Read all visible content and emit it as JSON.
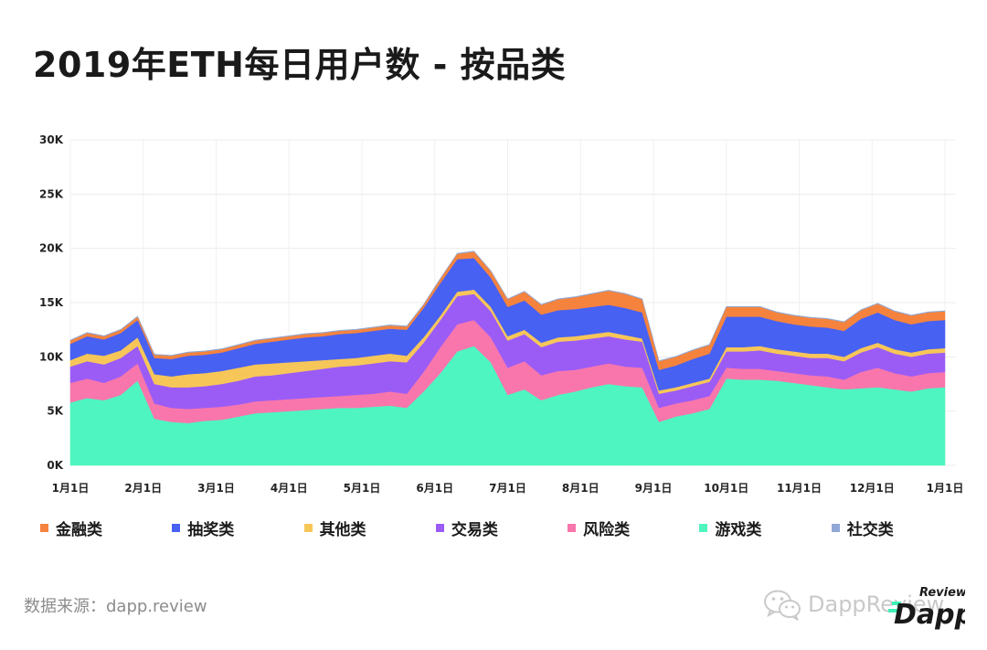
{
  "title": "2019年ETH每日用户数 - 按品类",
  "source": "数据来源：dapp.review",
  "watermark": {
    "text": "DappReview",
    "icon": "wechat-icon"
  },
  "logo": {
    "small": "Review",
    "big": "Dapp"
  },
  "chart_data": {
    "type": "area",
    "stacked": true,
    "ylim": [
      0,
      30000
    ],
    "yticks": [
      0,
      5000,
      10000,
      15000,
      20000,
      25000,
      30000
    ],
    "ytick_labels": [
      "0K",
      "5K",
      "10K",
      "15K",
      "20K",
      "25K",
      "30K"
    ],
    "xtick_labels": [
      "1月1日",
      "2月1日",
      "3月1日",
      "4月1日",
      "5月1日",
      "6月1日",
      "7月1日",
      "8月1日",
      "9月1日",
      "10月1日",
      "11月1日",
      "12月1日",
      "1月1日"
    ],
    "grid": true,
    "legend_position": "bottom",
    "x": [
      "1月1日",
      "1月8日",
      "1月15日",
      "1月22日",
      "1月29日",
      "2月5日",
      "2月12日",
      "2月19日",
      "2月26日",
      "3月5日",
      "3月12日",
      "3月19日",
      "3月26日",
      "4月2日",
      "4月9日",
      "4月16日",
      "4月23日",
      "4月30日",
      "5月7日",
      "5月14日",
      "5月21日",
      "5月28日",
      "6月4日",
      "6月11日",
      "6月18日",
      "6月25日",
      "7月2日",
      "7月9日",
      "7月16日",
      "7月23日",
      "7月30日",
      "8月6日",
      "8月13日",
      "8月20日",
      "8月27日",
      "9月3日",
      "9月10日",
      "9月17日",
      "9月24日",
      "10月1日",
      "10月8日",
      "10月15日",
      "10月22日",
      "10月29日",
      "11月5日",
      "11月12日",
      "11月19日",
      "11月26日",
      "12月3日",
      "12月10日",
      "12月17日",
      "12月24日",
      "12月31日"
    ],
    "series": [
      {
        "name": "游戏类",
        "color": "#4ef5c0",
        "values": [
          5800,
          6200,
          6000,
          6500,
          7800,
          4300,
          4000,
          3900,
          4100,
          4200,
          4500,
          4800,
          4900,
          5000,
          5100,
          5200,
          5300,
          5300,
          5400,
          5500,
          5300,
          6800,
          8500,
          10500,
          11000,
          9500,
          6500,
          7000,
          6000,
          6500,
          6800,
          7200,
          7500,
          7300,
          7200,
          4000,
          4500,
          4800,
          5200,
          8000,
          7900,
          7900,
          7800,
          7600,
          7400,
          7200,
          7000,
          7100,
          7200,
          7000,
          6800,
          7100,
          7200
        ]
      },
      {
        "name": "风险类",
        "color": "#f976ac",
        "values": [
          1800,
          1800,
          1600,
          1700,
          1600,
          1400,
          1300,
          1300,
          1200,
          1200,
          1100,
          1100,
          1100,
          1100,
          1100,
          1100,
          1100,
          1200,
          1200,
          1300,
          1300,
          1800,
          2400,
          2500,
          2400,
          2300,
          2500,
          2600,
          2300,
          2200,
          2000,
          1900,
          1900,
          1800,
          1800,
          1300,
          1200,
          1200,
          1200,
          1000,
          1000,
          1000,
          900,
          900,
          900,
          1000,
          900,
          1500,
          1800,
          1500,
          1400,
          1400,
          1400
        ]
      },
      {
        "name": "交易类",
        "color": "#9b5cf6",
        "values": [
          1500,
          1600,
          1700,
          1700,
          1600,
          1800,
          1900,
          2000,
          2000,
          2100,
          2200,
          2300,
          2300,
          2400,
          2500,
          2600,
          2700,
          2700,
          2800,
          2800,
          2900,
          2700,
          2500,
          2600,
          2400,
          2400,
          2500,
          2500,
          2600,
          2700,
          2700,
          2600,
          2500,
          2500,
          2400,
          1300,
          1200,
          1300,
          1300,
          1500,
          1600,
          1700,
          1600,
          1600,
          1600,
          1700,
          1700,
          1800,
          1900,
          1800,
          1800,
          1800,
          1800
        ]
      },
      {
        "name": "其他类",
        "color": "#f7c659",
        "values": [
          600,
          700,
          800,
          700,
          800,
          900,
          1000,
          1200,
          1200,
          1200,
          1200,
          1100,
          1100,
          1000,
          900,
          800,
          700,
          700,
          700,
          700,
          600,
          500,
          400,
          400,
          400,
          400,
          400,
          400,
          400,
          400,
          400,
          400,
          400,
          400,
          300,
          300,
          300,
          300,
          300,
          400,
          400,
          400,
          400,
          400,
          400,
          400,
          400,
          400,
          400,
          400,
          400,
          400,
          400
        ]
      },
      {
        "name": "抽奖类",
        "color": "#4761f2",
        "values": [
          1500,
          1600,
          1500,
          1600,
          1600,
          1500,
          1600,
          1700,
          1700,
          1700,
          1800,
          1900,
          2000,
          2100,
          2200,
          2200,
          2300,
          2300,
          2300,
          2300,
          2400,
          2700,
          3000,
          3000,
          2900,
          2700,
          2700,
          2700,
          2600,
          2500,
          2500,
          2500,
          2500,
          2500,
          2400,
          1900,
          2000,
          2200,
          2300,
          2800,
          2800,
          2700,
          2600,
          2500,
          2500,
          2400,
          2400,
          2700,
          2800,
          2700,
          2600,
          2600,
          2600
        ]
      },
      {
        "name": "金融类",
        "color": "#f5833d",
        "values": [
          300,
          300,
          300,
          300,
          300,
          300,
          300,
          300,
          300,
          300,
          300,
          300,
          300,
          300,
          300,
          300,
          300,
          300,
          300,
          300,
          300,
          300,
          400,
          500,
          600,
          600,
          700,
          800,
          900,
          1000,
          1100,
          1200,
          1300,
          1300,
          1200,
          800,
          800,
          800,
          800,
          900,
          900,
          900,
          800,
          800,
          800,
          800,
          800,
          800,
          800,
          800,
          800,
          800,
          800
        ]
      },
      {
        "name": "社交类",
        "color": "#8fa8d6",
        "values": [
          50,
          50,
          50,
          50,
          50,
          50,
          50,
          50,
          50,
          50,
          50,
          50,
          50,
          50,
          50,
          50,
          50,
          50,
          50,
          50,
          50,
          50,
          50,
          50,
          50,
          50,
          50,
          50,
          50,
          50,
          50,
          50,
          50,
          50,
          50,
          50,
          50,
          50,
          50,
          50,
          50,
          50,
          50,
          50,
          50,
          50,
          50,
          50,
          50,
          50,
          50,
          50,
          50
        ]
      }
    ],
    "legend_order": [
      "金融类",
      "抽奖类",
      "其他类",
      "交易类",
      "风险类",
      "游戏类",
      "社交类"
    ]
  }
}
